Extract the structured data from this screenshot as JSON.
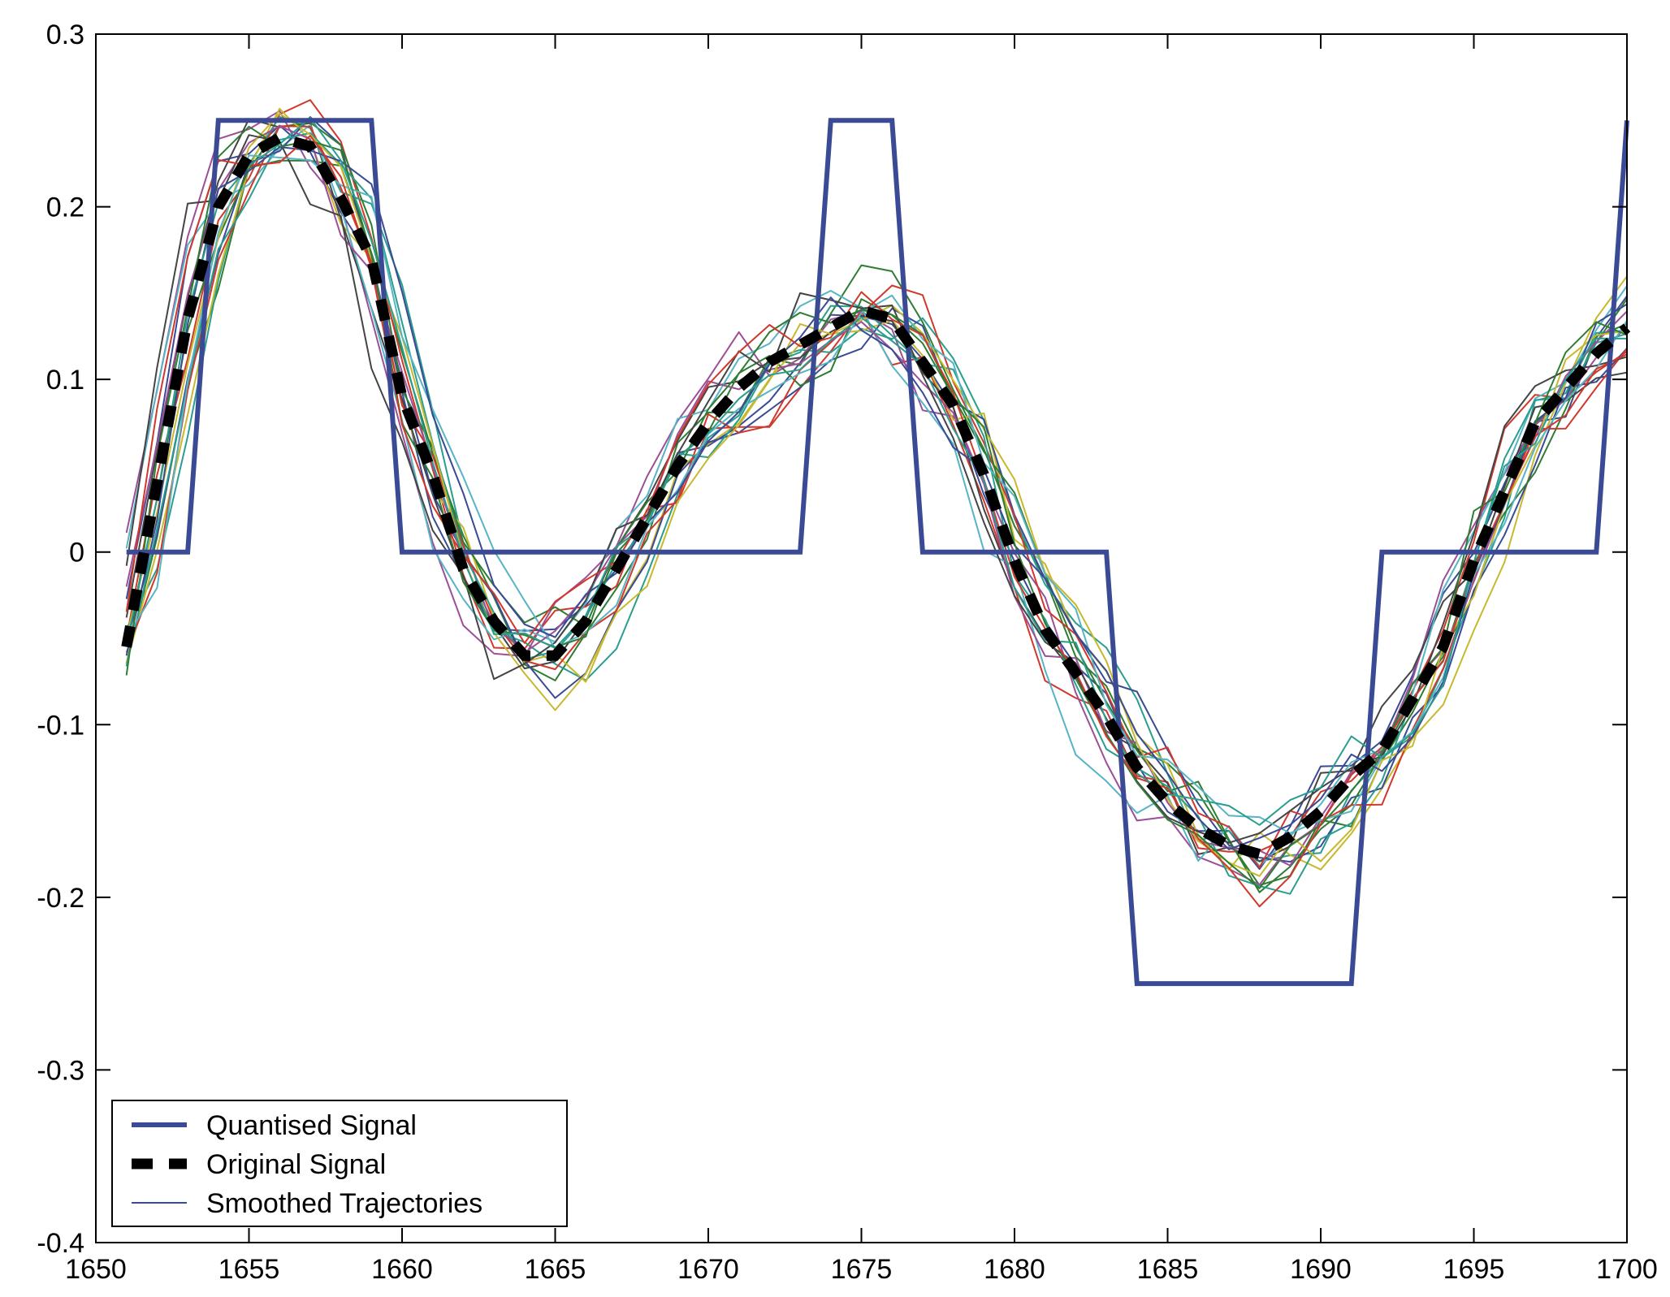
{
  "chart_data": {
    "type": "line",
    "title": "",
    "xlabel": "",
    "ylabel": "",
    "xlim": [
      1650,
      1700
    ],
    "ylim": [
      -0.4,
      0.3
    ],
    "xticks": [
      1650,
      1655,
      1660,
      1665,
      1670,
      1675,
      1680,
      1685,
      1690,
      1695,
      1700
    ],
    "xtick_labels": [
      "1650",
      "1655",
      "1660",
      "1665",
      "1670",
      "1675",
      "1680",
      "1685",
      "1690",
      "1695",
      "1700"
    ],
    "yticks": [
      -0.4,
      -0.3,
      -0.2,
      -0.1,
      0,
      0.1,
      0.2,
      0.3
    ],
    "ytick_labels": [
      "-0.4",
      "-0.3",
      "-0.2",
      "-0.1",
      "0",
      "0.1",
      "0.2",
      "0.3"
    ],
    "grid": false,
    "legend_position": "bottom-left",
    "legend": [
      "Quantised Signal",
      "Original Signal",
      "Smoothed Trajectories"
    ],
    "quantised_signal": {
      "name": "Quantised Signal",
      "color": "#3a4a94",
      "style": "solid-thick",
      "x": [
        1651,
        1653,
        1654,
        1659,
        1660,
        1673,
        1674,
        1676,
        1677,
        1683,
        1684,
        1691,
        1692,
        1699,
        1700
      ],
      "y": [
        0,
        0,
        0.25,
        0.25,
        0,
        0,
        0.25,
        0.25,
        0,
        0,
        -0.25,
        -0.25,
        0,
        0,
        0.25
      ]
    },
    "original_signal": {
      "name": "Original Signal",
      "color": "#000000",
      "style": "dashed-thick",
      "x": [
        1651,
        1652,
        1653,
        1654,
        1655,
        1656,
        1657,
        1658,
        1659,
        1660,
        1661,
        1662,
        1663,
        1664,
        1665,
        1666,
        1667,
        1668,
        1669,
        1670,
        1671,
        1672,
        1673,
        1674,
        1675,
        1676,
        1677,
        1678,
        1679,
        1680,
        1681,
        1682,
        1683,
        1684,
        1685,
        1686,
        1687,
        1688,
        1689,
        1690,
        1691,
        1692,
        1693,
        1694,
        1695,
        1696,
        1697,
        1698,
        1699,
        1700
      ],
      "y": [
        -0.055,
        0.04,
        0.135,
        0.2,
        0.23,
        0.24,
        0.235,
        0.205,
        0.17,
        0.09,
        0.045,
        -0.01,
        -0.04,
        -0.06,
        -0.06,
        -0.04,
        -0.01,
        0.02,
        0.05,
        0.075,
        0.095,
        0.11,
        0.12,
        0.13,
        0.14,
        0.135,
        0.11,
        0.085,
        0.045,
        -0.005,
        -0.045,
        -0.07,
        -0.095,
        -0.125,
        -0.145,
        -0.16,
        -0.17,
        -0.175,
        -0.165,
        -0.15,
        -0.13,
        -0.115,
        -0.085,
        -0.055,
        -0.005,
        0.035,
        0.075,
        0.095,
        0.115,
        0.13
      ]
    },
    "smoothed_trajectories": {
      "name": "Smoothed Trajectories",
      "count": 20,
      "colors": [
        "#3a4a94",
        "#2e7d32",
        "#d0382c",
        "#2a9d8f",
        "#9c4f96",
        "#c8b82e",
        "#444444",
        "#56b4c4"
      ],
      "description_values": "20 noisy trajectories scattered around the original signal"
    }
  }
}
